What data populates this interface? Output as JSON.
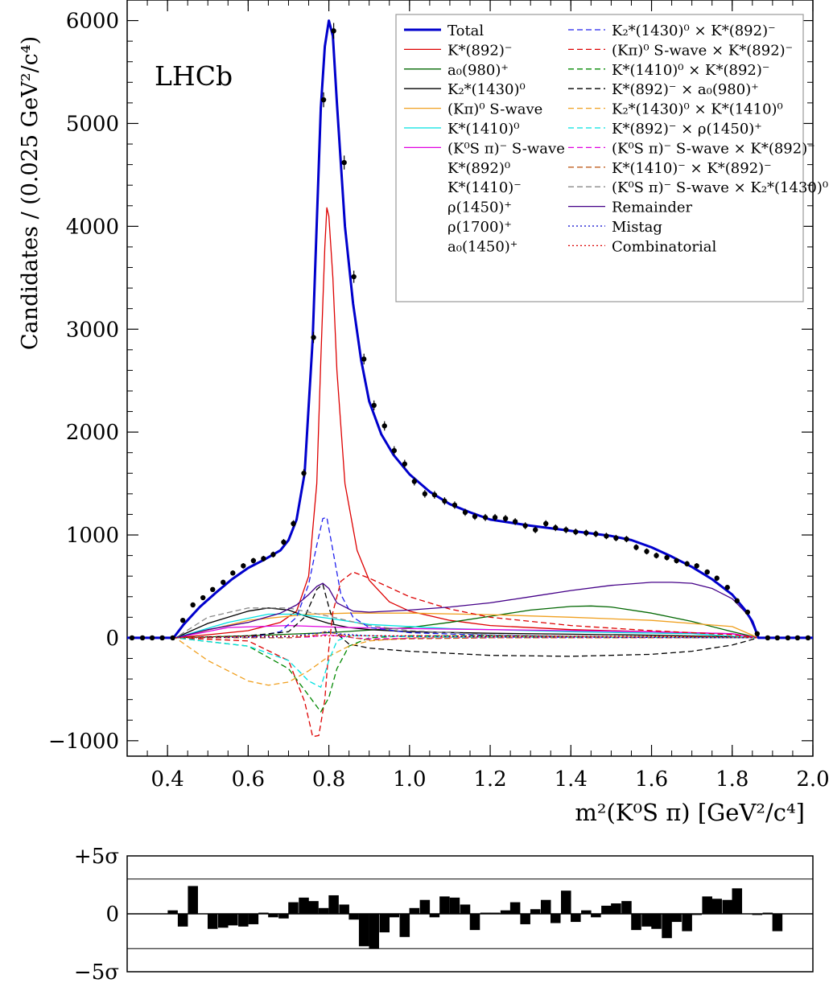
{
  "figure": {
    "experiment_label": "LHCb",
    "y_axis_label": "Candidates / (0.025 GeV²/c⁴)",
    "x_axis_label": "m²(K⁰S π) [GeV²/c⁴]"
  },
  "chart_data": [
    {
      "type": "line",
      "xlim": [
        0.3,
        2.0
      ],
      "ylim": [
        -1150,
        6200
      ],
      "x_ticks": [
        0.4,
        0.6,
        0.8,
        1.0,
        1.2,
        1.4,
        1.6,
        1.8,
        2.0
      ],
      "x_tick_labels": [
        "0.4",
        "0.6",
        "0.8",
        "1.0",
        "1.2",
        "1.4",
        "1.6",
        "1.8",
        "2.0"
      ],
      "y_ticks": [
        -1000,
        0,
        1000,
        2000,
        3000,
        4000,
        5000,
        6000
      ],
      "y_tick_labels": [
        "−1000",
        "0",
        "1000",
        "2000",
        "3000",
        "4000",
        "5000",
        "6000"
      ],
      "grid": false,
      "legend_position": "top-right",
      "data_points": {
        "x": [
          0.312,
          0.338,
          0.362,
          0.387,
          0.413,
          0.438,
          0.463,
          0.488,
          0.512,
          0.538,
          0.562,
          0.588,
          0.613,
          0.638,
          0.662,
          0.688,
          0.712,
          0.738,
          0.762,
          0.787,
          0.812,
          0.838,
          0.862,
          0.887,
          0.912,
          0.938,
          0.962,
          0.988,
          1.012,
          1.038,
          1.062,
          1.087,
          1.112,
          1.138,
          1.162,
          1.188,
          1.212,
          1.238,
          1.262,
          1.287,
          1.312,
          1.338,
          1.362,
          1.388,
          1.412,
          1.438,
          1.462,
          1.488,
          1.512,
          1.538,
          1.562,
          1.588,
          1.612,
          1.638,
          1.662,
          1.688,
          1.712,
          1.738,
          1.762,
          1.788,
          1.812,
          1.838,
          1.862,
          1.888,
          1.912,
          1.938,
          1.962,
          1.988
        ],
        "y": [
          0,
          0,
          0,
          0,
          0,
          170,
          320,
          390,
          470,
          540,
          630,
          700,
          750,
          770,
          810,
          930,
          1110,
          1600,
          2920,
          5230,
          5900,
          4620,
          3510,
          2710,
          2260,
          2060,
          1820,
          1690,
          1520,
          1400,
          1390,
          1330,
          1290,
          1220,
          1180,
          1170,
          1170,
          1160,
          1130,
          1090,
          1050,
          1110,
          1070,
          1050,
          1030,
          1020,
          1010,
          990,
          970,
          960,
          880,
          840,
          800,
          780,
          750,
          720,
          700,
          640,
          580,
          490,
          360,
          250,
          40,
          0,
          0,
          0,
          0,
          0
        ]
      },
      "series": [
        {
          "name": "Total",
          "color": "#0000cc",
          "style": "solid",
          "x": [
            0.3,
            0.415,
            0.44,
            0.48,
            0.52,
            0.56,
            0.6,
            0.64,
            0.68,
            0.7,
            0.72,
            0.74,
            0.76,
            0.78,
            0.79,
            0.8,
            0.81,
            0.82,
            0.84,
            0.86,
            0.88,
            0.9,
            0.93,
            0.96,
            1.0,
            1.05,
            1.1,
            1.15,
            1.2,
            1.3,
            1.4,
            1.5,
            1.55,
            1.6,
            1.65,
            1.7,
            1.75,
            1.8,
            1.83,
            1.85,
            1.865,
            2.0
          ],
          "y": [
            0,
            0,
            130,
            300,
            440,
            570,
            680,
            760,
            850,
            950,
            1150,
            1600,
            2900,
            5150,
            5750,
            6000,
            5850,
            5200,
            4000,
            3250,
            2700,
            2300,
            1980,
            1780,
            1590,
            1420,
            1300,
            1220,
            1150,
            1090,
            1040,
            990,
            950,
            880,
            790,
            690,
            570,
            420,
            280,
            160,
            0,
            0
          ]
        },
        {
          "name": "K*(892)⁻",
          "color": "#dd0000",
          "style": "solid",
          "x": [
            0.3,
            0.42,
            0.5,
            0.6,
            0.68,
            0.72,
            0.75,
            0.77,
            0.78,
            0.79,
            0.795,
            0.8,
            0.81,
            0.82,
            0.84,
            0.87,
            0.9,
            0.95,
            1.0,
            1.1,
            1.2,
            1.4,
            1.6,
            1.8,
            1.865,
            2.0
          ],
          "y": [
            0,
            0,
            30,
            70,
            150,
            260,
            600,
            1500,
            2700,
            3800,
            4180,
            4100,
            3500,
            2600,
            1500,
            850,
            560,
            350,
            260,
            170,
            120,
            80,
            60,
            40,
            0,
            0
          ]
        },
        {
          "name": "a₀(980)⁺",
          "color": "#006600",
          "style": "solid",
          "x": [
            0.3,
            0.42,
            0.6,
            0.8,
            1.0,
            1.1,
            1.2,
            1.3,
            1.4,
            1.45,
            1.5,
            1.6,
            1.7,
            1.8,
            1.865,
            2.0
          ],
          "y": [
            0,
            0,
            20,
            50,
            100,
            150,
            210,
            270,
            305,
            310,
            300,
            240,
            160,
            60,
            0,
            0
          ]
        },
        {
          "name": "K₂*(1430)⁰",
          "color": "#000000",
          "style": "solid",
          "x": [
            0.3,
            0.42,
            0.5,
            0.6,
            0.65,
            0.7,
            0.75,
            0.8,
            0.85,
            0.9,
            1.0,
            1.2,
            1.4,
            1.6,
            1.8,
            1.865,
            2.0
          ],
          "y": [
            0,
            0,
            140,
            260,
            290,
            270,
            200,
            140,
            100,
            80,
            60,
            45,
            35,
            25,
            10,
            0,
            0
          ]
        },
        {
          "name": "(Kπ)⁰ S-wave",
          "color": "#f0a020",
          "style": "solid",
          "x": [
            0.3,
            0.42,
            0.6,
            0.75,
            0.85,
            1.0,
            1.2,
            1.4,
            1.6,
            1.8,
            1.865,
            2.0
          ],
          "y": [
            0,
            0,
            170,
            230,
            240,
            240,
            225,
            200,
            170,
            110,
            0,
            0
          ]
        },
        {
          "name": "K*(1410)⁰",
          "color": "#00e0e0",
          "style": "solid",
          "x": [
            0.3,
            0.42,
            0.55,
            0.65,
            0.72,
            0.8,
            0.9,
            1.1,
            1.4,
            1.7,
            1.865,
            2.0
          ],
          "y": [
            0,
            0,
            150,
            230,
            230,
            190,
            130,
            90,
            60,
            40,
            0,
            0
          ]
        },
        {
          "name": "(K⁰S π)⁻ S-wave",
          "color": "#e000e0",
          "style": "solid",
          "x": [
            0.3,
            0.42,
            0.55,
            0.7,
            0.85,
            1.0,
            1.2,
            1.4,
            1.6,
            1.8,
            1.865,
            2.0
          ],
          "y": [
            0,
            0,
            100,
            120,
            100,
            90,
            80,
            70,
            60,
            40,
            0,
            0
          ]
        },
        {
          "name": "K₂*(1430)⁰ × K*(892)⁻",
          "color": "#2020ee",
          "style": "dashed",
          "x": [
            0.3,
            0.42,
            0.6,
            0.68,
            0.72,
            0.75,
            0.77,
            0.785,
            0.795,
            0.81,
            0.83,
            0.86,
            0.9,
            1.0,
            1.2,
            1.5,
            1.865,
            2.0
          ],
          "y": [
            0,
            0,
            0,
            60,
            200,
            520,
            900,
            1160,
            1170,
            850,
            420,
            200,
            100,
            50,
            25,
            10,
            0,
            0
          ]
        },
        {
          "name": "(Kπ)⁰ S-wave × K*(892)⁻",
          "color": "#dd0000",
          "style": "dashed",
          "x": [
            0.3,
            0.42,
            0.6,
            0.7,
            0.74,
            0.76,
            0.775,
            0.79,
            0.8,
            0.81,
            0.83,
            0.86,
            0.9,
            1.0,
            1.1,
            1.2,
            1.4,
            1.6,
            1.8,
            1.865,
            2.0
          ],
          "y": [
            0,
            0,
            -30,
            -220,
            -620,
            -960,
            -950,
            -600,
            -100,
            250,
            550,
            640,
            580,
            400,
            280,
            200,
            120,
            70,
            30,
            0,
            0
          ]
        },
        {
          "name": "K*(1410)⁰ × K*(892)⁻",
          "color": "#008800",
          "style": "dashed",
          "x": [
            0.3,
            0.42,
            0.6,
            0.7,
            0.75,
            0.78,
            0.8,
            0.82,
            0.85,
            0.9,
            1.0,
            1.2,
            1.5,
            1.865,
            2.0
          ],
          "y": [
            0,
            0,
            -80,
            -300,
            -560,
            -720,
            -580,
            -300,
            -80,
            0,
            20,
            20,
            10,
            0,
            0
          ]
        },
        {
          "name": "K*(892)⁻ × a₀(980)⁺",
          "color": "#000000",
          "style": "dashed",
          "x": [
            0.3,
            0.42,
            0.6,
            0.7,
            0.74,
            0.77,
            0.785,
            0.8,
            0.82,
            0.85,
            0.9,
            1.0,
            1.2,
            1.4,
            1.6,
            1.7,
            1.8,
            1.865,
            2.0
          ],
          "y": [
            0,
            0,
            20,
            60,
            200,
            470,
            520,
            300,
            40,
            -60,
            -100,
            -130,
            -170,
            -180,
            -160,
            -130,
            -70,
            0,
            0
          ]
        },
        {
          "name": "K₂*(1430)⁰ × K*(1410)⁰",
          "color": "#f0a020",
          "style": "dashed",
          "x": [
            0.3,
            0.42,
            0.5,
            0.6,
            0.65,
            0.7,
            0.75,
            0.8,
            0.85,
            0.9,
            1.0,
            1.2,
            1.5,
            1.865,
            2.0
          ],
          "y": [
            0,
            0,
            -220,
            -420,
            -460,
            -430,
            -320,
            -180,
            -80,
            -30,
            0,
            10,
            10,
            0,
            0
          ]
        },
        {
          "name": "K*(892)⁻ × ρ(1450)⁺",
          "color": "#00e0e0",
          "style": "dashed",
          "x": [
            0.3,
            0.42,
            0.6,
            0.7,
            0.75,
            0.78,
            0.8,
            0.82,
            0.85,
            0.9,
            1.0,
            1.2,
            1.865,
            2.0
          ],
          "y": [
            0,
            0,
            -80,
            -220,
            -420,
            -480,
            -220,
            -30,
            20,
            20,
            10,
            5,
            0,
            0
          ]
        },
        {
          "name": "(K⁰S π)⁻ S-wave × K*(892)⁻",
          "color": "#e000e0",
          "style": "dashed",
          "x": [
            0.3,
            0.42,
            0.7,
            0.76,
            0.79,
            0.82,
            0.86,
            0.9,
            1.0,
            1.2,
            1.865,
            2.0
          ],
          "y": [
            0,
            0,
            0,
            10,
            30,
            20,
            0,
            -10,
            -5,
            0,
            0,
            0
          ]
        },
        {
          "name": "K*(1410)⁻ × K*(892)⁻",
          "color": "#c06020",
          "style": "dashed",
          "x": [
            0.3,
            0.42,
            0.7,
            0.76,
            0.79,
            0.82,
            0.86,
            0.9,
            1.0,
            1.2,
            1.865,
            2.0
          ],
          "y": [
            0,
            0,
            0,
            20,
            60,
            40,
            0,
            -20,
            -10,
            0,
            0,
            0
          ]
        },
        {
          "name": "(K⁰S π)⁻ S-wave × K₂*(1430)⁰",
          "color": "#888888",
          "style": "dashed",
          "x": [
            0.3,
            0.42,
            0.5,
            0.6,
            0.7,
            0.8,
            0.9,
            1.0,
            1.2,
            1.5,
            1.865,
            2.0
          ],
          "y": [
            0,
            0,
            200,
            290,
            290,
            210,
            120,
            70,
            30,
            10,
            0,
            0
          ]
        },
        {
          "name": "Remainder",
          "color": "#440088",
          "style": "solid",
          "x": [
            0.3,
            0.42,
            0.5,
            0.6,
            0.68,
            0.72,
            0.75,
            0.77,
            0.785,
            0.8,
            0.82,
            0.86,
            0.9,
            1.0,
            1.1,
            1.2,
            1.3,
            1.4,
            1.5,
            1.6,
            1.65,
            1.7,
            1.75,
            1.8,
            1.84,
            1.865,
            2.0
          ],
          "y": [
            0,
            0,
            80,
            150,
            240,
            320,
            420,
            500,
            530,
            480,
            340,
            260,
            250,
            270,
            300,
            340,
            400,
            460,
            510,
            540,
            540,
            530,
            480,
            380,
            220,
            0,
            0
          ]
        },
        {
          "name": "Mistag",
          "color": "#0000cc",
          "style": "dotted",
          "x": [
            0.3,
            0.42,
            0.7,
            0.78,
            0.8,
            0.82,
            0.9,
            1.2,
            1.865,
            2.0
          ],
          "y": [
            0,
            0,
            10,
            50,
            60,
            40,
            20,
            10,
            0,
            0
          ]
        },
        {
          "name": "Combinatorial",
          "color": "#dd0000",
          "style": "dotted",
          "x": [
            0.3,
            0.42,
            0.6,
            0.8,
            1.0,
            1.4,
            1.8,
            1.865,
            2.0
          ],
          "y": [
            0,
            0,
            15,
            20,
            20,
            15,
            10,
            0,
            0
          ]
        }
      ],
      "legend_extra_entries": [
        "K*(892)⁰",
        "K*(1410)⁻",
        "ρ(1450)⁺",
        "ρ(1700)⁺",
        "a₀(1450)⁺"
      ]
    },
    {
      "type": "bar",
      "description_role": "pull",
      "xlim": [
        0.3,
        2.0
      ],
      "ylim": [
        -5,
        5
      ],
      "y_tick_labels": [
        "+5σ",
        "0",
        "−5σ"
      ],
      "reference_lines": [
        3,
        0,
        -3
      ],
      "x": [
        0.312,
        0.338,
        0.362,
        0.387,
        0.413,
        0.438,
        0.463,
        0.488,
        0.512,
        0.538,
        0.562,
        0.588,
        0.613,
        0.638,
        0.662,
        0.688,
        0.712,
        0.738,
        0.762,
        0.787,
        0.812,
        0.838,
        0.862,
        0.887,
        0.912,
        0.938,
        0.962,
        0.988,
        1.012,
        1.038,
        1.062,
        1.087,
        1.112,
        1.138,
        1.162,
        1.188,
        1.212,
        1.238,
        1.262,
        1.287,
        1.312,
        1.338,
        1.362,
        1.388,
        1.412,
        1.438,
        1.462,
        1.488,
        1.512,
        1.538,
        1.562,
        1.588,
        1.612,
        1.638,
        1.662,
        1.688,
        1.712,
        1.738,
        1.762,
        1.788,
        1.812,
        1.838,
        1.862,
        1.888,
        1.912,
        1.938,
        1.962,
        1.988
      ],
      "values": [
        0,
        0,
        0,
        0,
        0.3,
        -1.1,
        2.4,
        0,
        -1.3,
        -1.2,
        -1.0,
        -1.1,
        -0.9,
        0.1,
        -0.3,
        -0.4,
        1.0,
        1.4,
        1.1,
        0.5,
        1.6,
        0.8,
        -0.5,
        -2.8,
        -3.0,
        -1.6,
        -0.3,
        -2.0,
        0.5,
        1.2,
        -0.3,
        1.5,
        1.4,
        0.8,
        -1.4,
        0.1,
        0.1,
        0.3,
        1.0,
        -0.9,
        0.4,
        1.2,
        -0.8,
        2.0,
        -0.7,
        0.3,
        -0.3,
        0.7,
        0.9,
        1.1,
        -1.4,
        -1.1,
        -1.3,
        -2.1,
        -0.7,
        -1.5,
        -0.1,
        1.5,
        1.3,
        1.2,
        2.2,
        0,
        -0.1,
        0.1,
        -1.5,
        0,
        0,
        0
      ]
    }
  ]
}
